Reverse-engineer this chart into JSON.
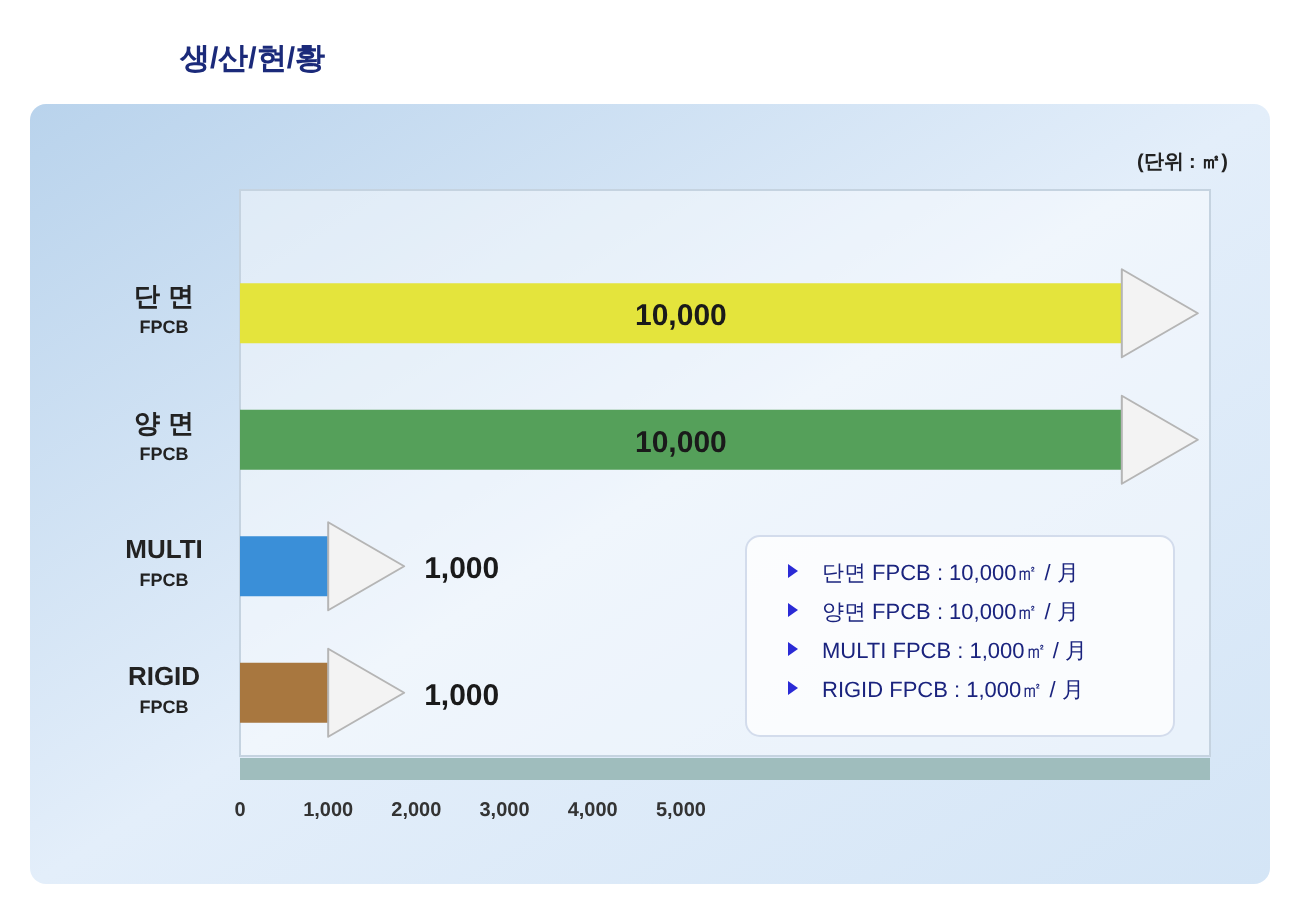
{
  "chart_data": {
    "type": "bar",
    "orientation": "horizontal",
    "title": "생/산/현/황",
    "categories": [
      "단 면\nFPCB",
      "양 면\nFPCB",
      "MULTI\nFPCB",
      "RIGID\nFPCB"
    ],
    "values": [
      10000,
      10000,
      1000,
      1000
    ],
    "colors": [
      "#e4e43c",
      "#55a05a",
      "#3a8fd8",
      "#a8773f"
    ],
    "value_labels": [
      "10,000",
      "10,000",
      "1,000",
      "1,000"
    ],
    "xlim": [
      0,
      11000
    ],
    "xticks": [
      0,
      {
        "value": 1000,
        "label": "1,000"
      },
      {
        "value": 2000,
        "label": "2,000"
      },
      {
        "value": 3000,
        "label": "3,000"
      },
      {
        "value": 4000,
        "label": "4,000"
      },
      {
        "value": 5000,
        "label": "5,000"
      }
    ],
    "annotations": [
      "(단위 : ㎡)",
      "단면 FPCB : 10,000㎡ / 月",
      "양면 FPCB : 10,000㎡ / 月",
      "MULTI FPCB : 1,000㎡ / 月",
      "RIGID FPCB : 1,000㎡ / 月"
    ]
  }
}
